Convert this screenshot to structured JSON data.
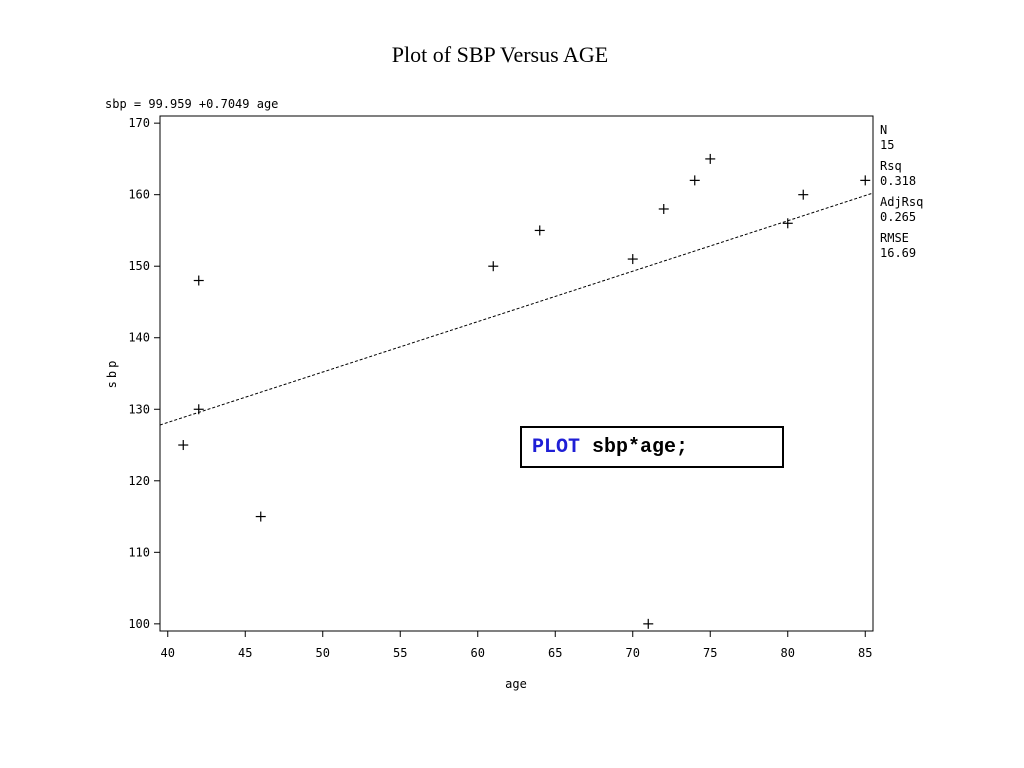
{
  "slide_title": "Plot of SBP Versus AGE",
  "code": {
    "keyword": "PLOT",
    "rest": " sbp*age;"
  },
  "stats": [
    {
      "label": "N",
      "value": "15"
    },
    {
      "label": "Rsq",
      "value": "0.318"
    },
    {
      "label": "AdjRsq",
      "value": "0.265"
    },
    {
      "label": "RMSE",
      "value": "16.69"
    }
  ],
  "chart_data": {
    "type": "scatter",
    "title": "sbp = 99.959 +0.7049 age",
    "xlabel": "age",
    "ylabel": "sbp",
    "xlim": [
      39.5,
      85.5
    ],
    "ylim": [
      99,
      171
    ],
    "x_ticks": [
      40,
      45,
      50,
      55,
      60,
      65,
      70,
      75,
      80,
      85
    ],
    "y_ticks": [
      100,
      110,
      120,
      130,
      140,
      150,
      160,
      170
    ],
    "grid": false,
    "marker": "plus",
    "points": [
      {
        "x": 41,
        "y": 125
      },
      {
        "x": 42,
        "y": 148
      },
      {
        "x": 42,
        "y": 130
      },
      {
        "x": 46,
        "y": 115
      },
      {
        "x": 61,
        "y": 150
      },
      {
        "x": 64,
        "y": 155
      },
      {
        "x": 70,
        "y": 151
      },
      {
        "x": 71,
        "y": 100
      },
      {
        "x": 72,
        "y": 158
      },
      {
        "x": 74,
        "y": 162
      },
      {
        "x": 75,
        "y": 165
      },
      {
        "x": 80,
        "y": 156
      },
      {
        "x": 81,
        "y": 160
      },
      {
        "x": 85,
        "y": 162
      }
    ],
    "regression": {
      "intercept": 99.959,
      "slope": 0.7049,
      "style": "dashed"
    }
  }
}
